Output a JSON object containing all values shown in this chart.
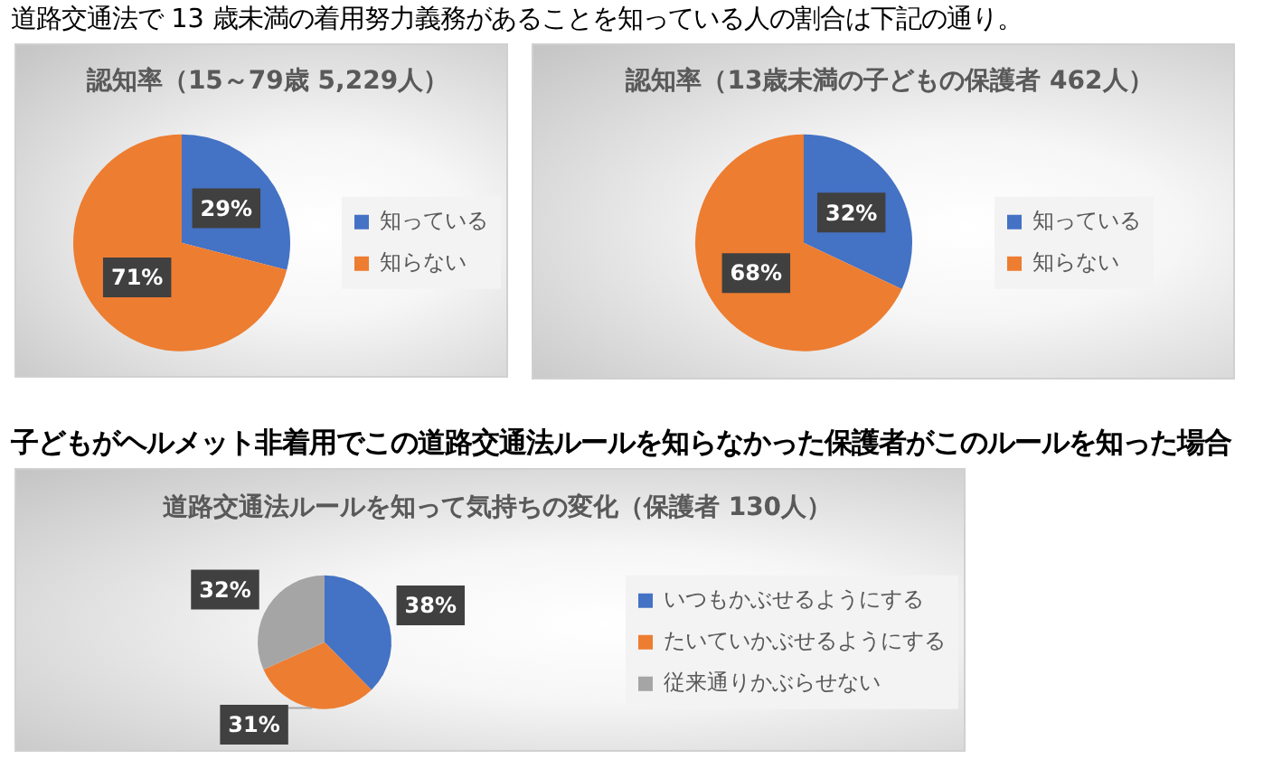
{
  "chart_data": [
    {
      "type": "pie",
      "title": "認知率（15～79歳 5,229人）",
      "categories": [
        "知っている",
        "知らない"
      ],
      "values": [
        29,
        71
      ],
      "colors": [
        "#4472c4",
        "#ed7d31"
      ],
      "value_labels": [
        "29%",
        "71%"
      ],
      "legend": "right",
      "annotations": [
        "道路交通法で 13 歳未満の着用努力義務があることを知っている人の割合は下記の通り。"
      ]
    },
    {
      "type": "pie",
      "title": "認知率（13歳未満の子どもの保護者 462人）",
      "categories": [
        "知っている",
        "知らない"
      ],
      "values": [
        32,
        68
      ],
      "colors": [
        "#4472c4",
        "#ed7d31"
      ],
      "value_labels": [
        "32%",
        "68%"
      ],
      "legend": "right"
    },
    {
      "type": "pie",
      "title": "道路交通法ルールを知って気持ちの変化（保護者 130人）",
      "categories": [
        "いつもかぶせるようにする",
        "たいていかぶせるようにする",
        "従来通りかぶらせない"
      ],
      "values": [
        38,
        31,
        32
      ],
      "colors": [
        "#4472c4",
        "#ed7d31",
        "#a5a5a5"
      ],
      "value_labels": [
        "38%",
        "31%",
        "32%"
      ],
      "legend": "right",
      "annotations": [
        "子どもがヘルメット非着用でこの道路交通法ルールを知らなかった保護者がこのルールを知った場合"
      ]
    }
  ]
}
